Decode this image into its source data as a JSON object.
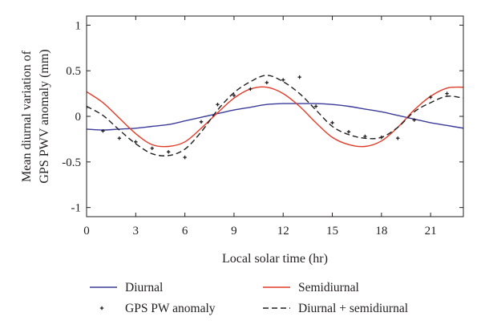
{
  "chart_data": {
    "type": "line",
    "title": "",
    "xlabel": "Local solar time (hr)",
    "ylabel": [
      "Mean diurnal variation of",
      "GPS PWV anomaly (mm)"
    ],
    "xlim": [
      0,
      23
    ],
    "ylim": [
      -1.1,
      1.1
    ],
    "xticks": [
      0,
      3,
      6,
      9,
      12,
      15,
      18,
      21
    ],
    "yticks": [
      -1,
      -0.5,
      0,
      0.5,
      1
    ],
    "ytick_labels": [
      "-1",
      "-0.5",
      "0",
      "0.5",
      "1"
    ],
    "grid": false,
    "legend_position": "bottom",
    "colors": {
      "diurnal": "#3b3b9a",
      "semidiurnal": "#e03c28",
      "combined": "#231f20",
      "points": "#231f20",
      "axes": "#231f20"
    },
    "series": [
      {
        "name": "Diurnal",
        "style": "solid",
        "x": [
          0,
          1,
          2,
          3,
          4,
          5,
          6,
          7,
          8,
          9,
          10,
          11,
          12,
          13,
          14,
          15,
          16,
          17,
          18,
          19,
          20,
          21,
          22,
          23
        ],
        "y": [
          -0.14,
          -0.15,
          -0.14,
          -0.13,
          -0.11,
          -0.09,
          -0.05,
          -0.01,
          0.03,
          0.07,
          0.1,
          0.13,
          0.14,
          0.14,
          0.14,
          0.13,
          0.11,
          0.08,
          0.05,
          0.01,
          -0.03,
          -0.07,
          -0.1,
          -0.13
        ]
      },
      {
        "name": "Semidiurnal",
        "style": "solid",
        "x": [
          0,
          1,
          2,
          3,
          4,
          5,
          6,
          7,
          8,
          9,
          10,
          11,
          12,
          13,
          14,
          15,
          16,
          17,
          18,
          19,
          20,
          21,
          22,
          23
        ],
        "y": [
          0.27,
          0.15,
          -0.02,
          -0.19,
          -0.31,
          -0.33,
          -0.28,
          -0.13,
          0.04,
          0.2,
          0.3,
          0.32,
          0.25,
          0.11,
          -0.07,
          -0.23,
          -0.31,
          -0.33,
          -0.27,
          -0.12,
          0.07,
          0.22,
          0.31,
          0.32
        ]
      },
      {
        "name": "Diurnal + semidiurnal",
        "style": "dashed",
        "x": [
          0,
          1,
          2,
          3,
          4,
          5,
          6,
          7,
          8,
          9,
          10,
          11,
          12,
          13,
          14,
          15,
          16,
          17,
          18,
          19,
          20,
          21,
          22,
          23
        ],
        "y": [
          0.11,
          0.01,
          -0.15,
          -0.3,
          -0.41,
          -0.43,
          -0.36,
          -0.17,
          0.07,
          0.26,
          0.38,
          0.45,
          0.38,
          0.25,
          0.07,
          -0.11,
          -0.2,
          -0.24,
          -0.23,
          -0.12,
          0.05,
          0.15,
          0.22,
          0.2
        ]
      },
      {
        "name": "GPS PW anomaly",
        "style": "points",
        "x": [
          0,
          1,
          2,
          3,
          4,
          5,
          6,
          7,
          8,
          9,
          10,
          11,
          12,
          13,
          14,
          15,
          16,
          17,
          18,
          19,
          20,
          21,
          22
        ],
        "y": [
          0.1,
          -0.16,
          -0.24,
          -0.28,
          -0.35,
          -0.39,
          -0.45,
          -0.06,
          0.13,
          0.23,
          0.3,
          0.37,
          0.4,
          0.43,
          0.11,
          -0.07,
          -0.17,
          -0.22,
          -0.23,
          -0.24,
          -0.04,
          0.21,
          0.25
        ]
      }
    ],
    "legend": [
      {
        "label": "Diurnal",
        "style": "line",
        "series": "diurnal"
      },
      {
        "label": "Semidiurnal",
        "style": "line",
        "series": "semidiurnal"
      },
      {
        "label": "GPS PW anomaly",
        "style": "points",
        "series": "points"
      },
      {
        "label": "Diurnal + semidiurnal",
        "style": "dashed",
        "series": "combined"
      }
    ]
  }
}
